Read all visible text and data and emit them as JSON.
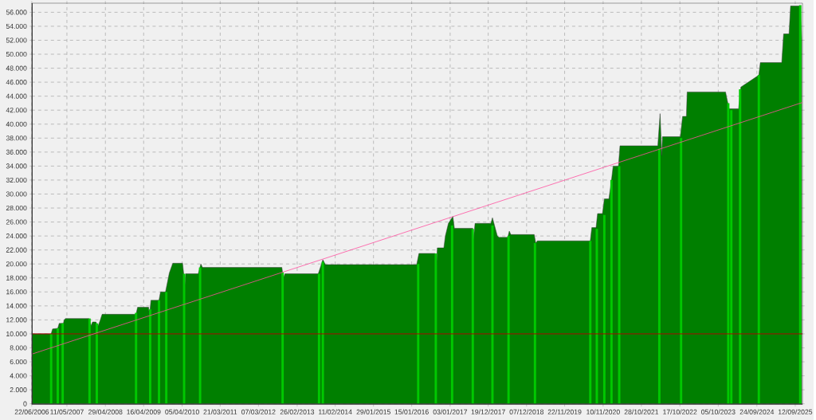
{
  "chart_data": {
    "type": "area",
    "xlim": [
      "2006-06-22",
      "2025-11-18"
    ],
    "ylim": [
      -100,
      57300
    ],
    "xticks": [
      {
        "value": "2006-06-22",
        "label": "22/06/2006"
      },
      {
        "value": "2007-05-11",
        "label": "11/05/2007"
      },
      {
        "value": "2008-04-29",
        "label": "29/04/2008"
      },
      {
        "value": "2009-04-16",
        "label": "16/04/2009"
      },
      {
        "value": "2010-04-05",
        "label": "05/04/2010"
      },
      {
        "value": "2011-03-21",
        "label": "21/03/2011"
      },
      {
        "value": "2012-03-07",
        "label": "07/03/2012"
      },
      {
        "value": "2013-02-26",
        "label": "26/02/2013"
      },
      {
        "value": "2014-02-11",
        "label": "11/02/2014"
      },
      {
        "value": "2015-01-29",
        "label": "29/01/2015"
      },
      {
        "value": "2016-01-15",
        "label": "15/01/2016"
      },
      {
        "value": "2017-01-03",
        "label": "03/01/2017"
      },
      {
        "value": "2017-12-19",
        "label": "19/12/2017"
      },
      {
        "value": "2018-12-07",
        "label": "07/12/2018"
      },
      {
        "value": "2019-11-22",
        "label": "22/11/2019"
      },
      {
        "value": "2020-11-10",
        "label": "10/11/2020"
      },
      {
        "value": "2021-10-28",
        "label": "28/10/2021"
      },
      {
        "value": "2022-10-17",
        "label": "17/10/2022"
      },
      {
        "value": "2023-10-05",
        "label": "05/10/2023"
      },
      {
        "value": "2024-09-24",
        "label": "24/09/2024"
      },
      {
        "value": "2025-09-12",
        "label": "12/09/2025"
      }
    ],
    "yticks": [
      0,
      {
        "value": 2000,
        "label": "2.000"
      },
      {
        "value": 4000,
        "label": "4.000"
      },
      {
        "value": 6000,
        "label": "6.000"
      },
      {
        "value": 8000,
        "label": "8.000"
      },
      {
        "value": 10000,
        "label": "10.000"
      },
      {
        "value": 12000,
        "label": "12.000"
      },
      {
        "value": 14000,
        "label": "14.000"
      },
      {
        "value": 16000,
        "label": "16.000"
      },
      {
        "value": 18000,
        "label": "18.000"
      },
      {
        "value": 20000,
        "label": "20.000"
      },
      {
        "value": 22000,
        "label": "22.000"
      },
      {
        "value": 24000,
        "label": "24.000"
      },
      {
        "value": 26000,
        "label": "26.000"
      },
      {
        "value": 28000,
        "label": "28.000"
      },
      {
        "value": 30000,
        "label": "30.000"
      },
      {
        "value": 32000,
        "label": "32.000"
      },
      {
        "value": 34000,
        "label": "34.000"
      },
      {
        "value": 36000,
        "label": "36.000"
      },
      {
        "value": 38000,
        "label": "38.000"
      },
      {
        "value": 40000,
        "label": "40.000"
      },
      {
        "value": 42000,
        "label": "42.000"
      },
      {
        "value": 44000,
        "label": "44.000"
      },
      {
        "value": 46000,
        "label": "46.000"
      },
      {
        "value": 48000,
        "label": "48.000"
      },
      {
        "value": 50000,
        "label": "50.000"
      },
      {
        "value": 52000,
        "label": "52.000"
      },
      {
        "value": 54000,
        "label": "54.000"
      },
      {
        "value": 56000,
        "label": "56.000"
      }
    ],
    "grid": true,
    "ref_lines": [
      {
        "axis": "y",
        "value": 10000,
        "color": "#b40000"
      }
    ],
    "series": [
      {
        "color": "#007f00",
        "x": [
          "2006-06-22",
          "2006-12-17",
          "2006-12-30",
          "2007-02-16",
          "2007-03-01",
          "2007-04-09",
          "2007-04-15",
          "2007-04-28",
          "2007-11-28",
          "2007-12-19",
          "2008-01-02",
          "2008-02-03",
          "2008-02-17",
          "2008-03-09",
          "2008-03-30",
          "2009-02-05",
          "2009-02-19",
          "2009-06-01",
          "2009-06-08",
          "2009-06-22",
          "2009-09-04",
          "2009-09-18",
          "2009-11-03",
          "2009-12-08",
          "2010-01-09",
          "2010-04-09",
          "2010-04-30",
          "2010-05-07",
          "2010-08-31",
          "2010-09-24",
          "2010-10-09",
          "2012-10-08",
          "2012-10-22",
          "2012-11-05",
          "2013-09-08",
          "2013-10-20",
          "2013-11-13",
          "2016-03-01",
          "2016-03-22",
          "2016-08-17",
          "2016-08-31",
          "2016-09-07",
          "2016-11-06",
          "2016-11-20",
          "2016-12-18",
          "2017-01-28",
          "2017-02-11",
          "2017-07-30",
          "2017-08-06",
          "2017-08-20",
          "2018-01-13",
          "2018-01-27",
          "2018-03-13",
          "2018-03-28",
          "2018-06-17",
          "2018-07-01",
          "2018-07-15",
          "2019-02-15",
          "2019-03-01",
          "2019-03-16",
          "2020-07-15",
          "2020-07-29",
          "2020-09-06",
          "2020-09-20",
          "2020-11-04",
          "2020-11-21",
          "2021-01-02",
          "2021-01-26",
          "2021-02-10",
          "2021-03-31",
          "2021-04-14",
          "2022-03-28",
          "2022-04-18",
          "2022-05-03",
          "2022-05-10",
          "2022-10-21",
          "2022-11-11",
          "2022-12-16",
          "2022-12-23",
          "2023-12-11",
          "2024-01-12",
          "2024-04-09",
          "2024-04-30",
          "2024-10-12",
          "2024-10-26",
          "2025-05-11",
          "2025-05-28",
          "2025-07-17",
          "2025-07-31",
          "2025-10-28",
          "2025-11-11"
        ],
        "values": [
          10000,
          10000,
          10700,
          10800,
          11500,
          11500,
          12000,
          12200,
          12200,
          11200,
          11700,
          11700,
          11000,
          11800,
          12800,
          12800,
          13800,
          13800,
          12500,
          14800,
          14800,
          16000,
          16000,
          18700,
          20100,
          20100,
          17000,
          18600,
          18600,
          20000,
          19500,
          19500,
          18000,
          18600,
          18600,
          20600,
          19900,
          19900,
          21500,
          21500,
          20000,
          22300,
          22300,
          24000,
          25800,
          26800,
          25100,
          25100,
          23500,
          25800,
          25800,
          26600,
          24000,
          23800,
          23800,
          24700,
          24200,
          24200,
          23000,
          23300,
          23300,
          25200,
          25200,
          27200,
          27200,
          29300,
          29300,
          32000,
          34000,
          34000,
          36900,
          36900,
          41500,
          35500,
          38200,
          38200,
          41100,
          41100,
          44600,
          44600,
          42200,
          42200,
          45300,
          47000,
          48800,
          48800,
          52900,
          52900,
          56900,
          56900,
          52000
        ]
      },
      {
        "type": "bar",
        "color": "#00c800",
        "x": [
          "2006-12-17",
          "2007-02-16",
          "2007-04-02",
          "2007-12-05",
          "2008-02-10",
          "2009-02-05",
          "2009-06-15",
          "2009-09-04",
          "2009-11-10",
          "2010-04-23",
          "2010-09-17",
          "2012-10-15",
          "2013-09-15",
          "2013-10-20",
          "2016-03-15",
          "2016-08-24",
          "2017-01-21",
          "2017-07-30",
          "2018-01-27",
          "2018-06-24",
          "2019-02-22",
          "2020-07-15",
          "2020-09-13",
          "2020-11-21",
          "2021-01-26",
          "2021-04-07",
          "2022-04-11",
          "2022-10-28",
          "2024-01-05",
          "2024-02-02",
          "2024-04-23",
          "2024-10-12",
          "2025-10-28"
        ],
        "values": [
          10000,
          10800,
          11500,
          12200,
          11500,
          13000,
          13500,
          14800,
          16000,
          18600,
          19500,
          18800,
          18600,
          20300,
          20000,
          21500,
          25500,
          25000,
          25500,
          24000,
          23000,
          23300,
          25000,
          27000,
          32000,
          34000,
          36500,
          38000,
          43000,
          42000,
          45000,
          47000,
          57000
        ]
      },
      {
        "type": "line",
        "color": "#ff50a0",
        "x": [
          "2006-06-22",
          "2025-11-18"
        ],
        "values": [
          7100,
          43100
        ]
      }
    ]
  }
}
